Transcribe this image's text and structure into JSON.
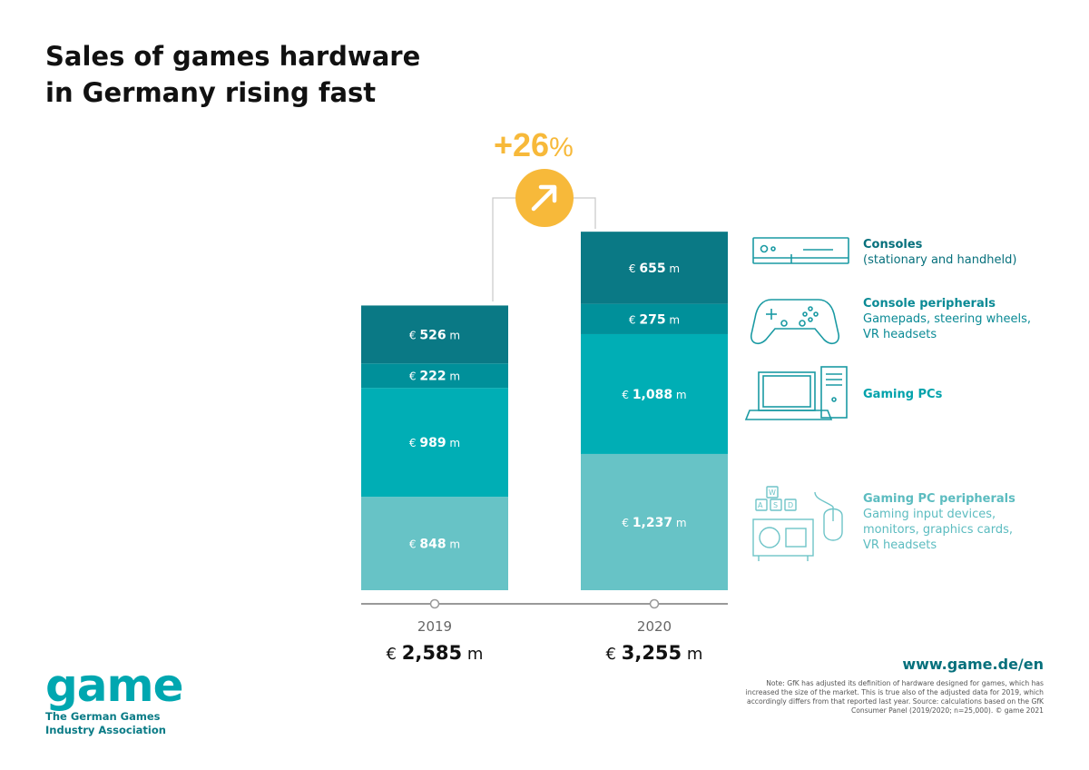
{
  "title_lines": [
    "Sales of games hardware",
    "in Germany rising fast"
  ],
  "growth": {
    "value": "+26",
    "unit": "%"
  },
  "chart_data": {
    "type": "bar",
    "stacked": true,
    "categories": [
      "2019",
      "2020"
    ],
    "totals": [
      2585,
      3255
    ],
    "total_labels": [
      "2,585",
      "3,255"
    ],
    "currency": "€",
    "unit": "m",
    "series": [
      {
        "name": "Gaming PC peripherals",
        "values": [
          848,
          1237
        ],
        "labels": [
          "848",
          "1,237"
        ],
        "color": "#67c3c6"
      },
      {
        "name": "Gaming PCs",
        "values": [
          989,
          1088
        ],
        "labels": [
          "989",
          "1,088"
        ],
        "color": "#00aeb5"
      },
      {
        "name": "Console peripherals",
        "values": [
          222,
          275
        ],
        "labels": [
          "222",
          "275"
        ],
        "color": "#00909a"
      },
      {
        "name": "Consoles",
        "values": [
          526,
          655
        ],
        "labels": [
          "526",
          "655"
        ],
        "color": "#0a7985"
      }
    ]
  },
  "legend": [
    {
      "name": "Consoles",
      "desc": "(stationary and handheld)",
      "color": "#06707c",
      "icon": "console-icon"
    },
    {
      "name": "Console peripherals",
      "desc": "Gamepads, steering wheels, VR headsets",
      "color": "#0a8a95",
      "icon": "gamepad-icon"
    },
    {
      "name": "Gaming PCs",
      "desc": "",
      "color": "#00a2ab",
      "icon": "gaming-pc-icon"
    },
    {
      "name": "Gaming PC peripherals",
      "desc": "Gaming input devices, monitors, graphics cards, VR headsets",
      "color": "#5cbcc0",
      "icon": "pc-peripherals-icon"
    }
  ],
  "logo": {
    "word": "game",
    "sub1": "The German Games",
    "sub2": "Industry Association"
  },
  "website": "www.game.de/en",
  "note": "Note: GfK has adjusted its definition of hardware designed for games, which has increased the size of the market. This is true also of the adjusted data for 2019, which accordingly differs from that reported last year. Source: calculations based on the GfK Consumer Panel (2019/2020; n=25,000). © game 2021",
  "colors": {
    "accent": "#f7b93a",
    "axis": "#999999",
    "icon_stroke": "#1a9aa3"
  }
}
